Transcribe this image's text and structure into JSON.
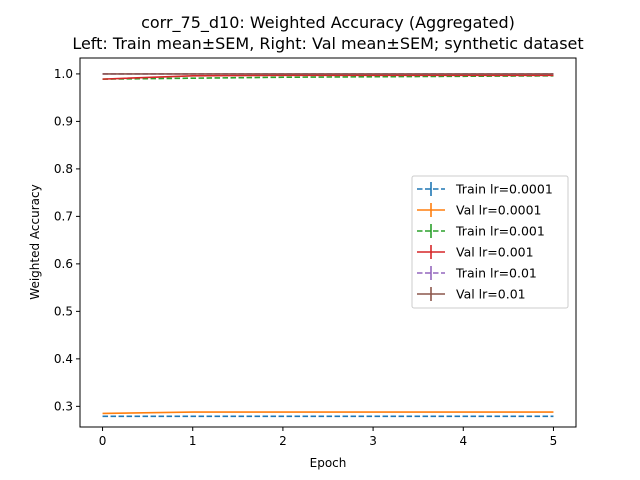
{
  "chart_data": {
    "type": "line",
    "title": "corr_75_d10: Weighted Accuracy (Aggregated)",
    "subtitle": "Left: Train mean±SEM, Right: Val mean±SEM; synthetic dataset",
    "xlabel": "Epoch",
    "ylabel": "Weighted Accuracy",
    "xlim": [
      -0.25,
      5.25
    ],
    "ylim": [
      0.2565,
      1.0335
    ],
    "xticks": [
      0,
      1,
      2,
      3,
      4,
      5
    ],
    "yticks": [
      0.3,
      0.4,
      0.5,
      0.6,
      0.7,
      0.8,
      0.9,
      1.0
    ],
    "ytick_labels": [
      "0.3",
      "0.4",
      "0.5",
      "0.6",
      "0.7",
      "0.8",
      "0.9",
      "1.0"
    ],
    "grid": false,
    "legend_position": "center-right",
    "x": [
      0,
      1,
      2,
      3,
      4,
      5
    ],
    "series": [
      {
        "name": "Train lr=0.0001",
        "color": "#1f77b4",
        "dash": true,
        "values": [
          0.279,
          0.279,
          0.279,
          0.279,
          0.279,
          0.279
        ]
      },
      {
        "name": "Val   lr=0.0001",
        "color": "#ff7f0e",
        "dash": false,
        "values": [
          0.285,
          0.288,
          0.288,
          0.288,
          0.288,
          0.288
        ]
      },
      {
        "name": "Train lr=0.001",
        "color": "#2ca02c",
        "dash": true,
        "values": [
          0.989,
          0.991,
          0.993,
          0.994,
          0.995,
          0.996
        ]
      },
      {
        "name": "Val   lr=0.001",
        "color": "#d62728",
        "dash": false,
        "values": [
          0.989,
          0.996,
          0.997,
          0.997,
          0.997,
          0.997
        ]
      },
      {
        "name": "Train lr=0.01",
        "color": "#9467bd",
        "dash": true,
        "values": [
          1.0,
          1.0,
          1.0,
          1.0,
          1.0,
          1.0
        ]
      },
      {
        "name": "Val   lr=0.01",
        "color": "#8c564b",
        "dash": false,
        "values": [
          1.0,
          1.0,
          1.0,
          1.0,
          1.0,
          1.0
        ]
      }
    ]
  }
}
